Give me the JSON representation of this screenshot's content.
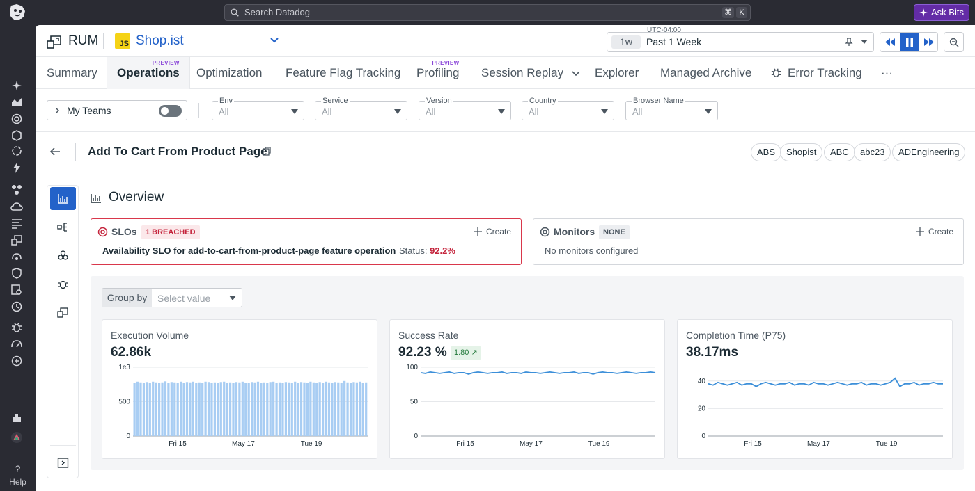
{
  "global": {
    "search_placeholder": "Search Datadog",
    "search_kbd_cmd": "⌘",
    "search_kbd_k": "K",
    "ask_bits": "Ask Bits",
    "help": "Help"
  },
  "header": {
    "product": "RUM",
    "app_badge": "JS",
    "app_name": "Shop.ist",
    "timezone": "UTC-04:00",
    "time_chip": "1w",
    "time_label": "Past 1 Week"
  },
  "tabs": [
    {
      "label": "Summary"
    },
    {
      "label": "Operations",
      "preview": "PREVIEW"
    },
    {
      "label": "Optimization"
    },
    {
      "label": "Feature Flag Tracking"
    },
    {
      "label": "Profiling",
      "preview": "PREVIEW"
    },
    {
      "label": "Session Replay"
    },
    {
      "label": "Explorer"
    },
    {
      "label": "Managed Archive"
    },
    {
      "label": "Error Tracking"
    },
    {
      "label": "···"
    }
  ],
  "filters": {
    "my_teams": "My Teams",
    "selects": [
      {
        "label": "Env",
        "value": "All"
      },
      {
        "label": "Service",
        "value": "All"
      },
      {
        "label": "Version",
        "value": "All"
      },
      {
        "label": "Country",
        "value": "All"
      },
      {
        "label": "Browser Name",
        "value": "All"
      }
    ]
  },
  "operation": {
    "title": "Add To Cart From Product Page",
    "teams": [
      "ABS",
      "Shopist",
      "ABC",
      "abc23",
      "ADEngineering"
    ]
  },
  "overview": {
    "title": "Overview",
    "slos": {
      "title": "SLOs",
      "badge": "1 BREACHED",
      "create": "Create",
      "name": "Availability SLO for add-to-cart-from-product-page feature operation",
      "status_label": "Status:",
      "status_value": "92.2%"
    },
    "monitors": {
      "title": "Monitors",
      "badge": "NONE",
      "create": "Create",
      "empty": "No monitors configured"
    },
    "group_by": {
      "label": "Group by",
      "placeholder": "Select value"
    }
  },
  "colors": {
    "accent": "#2362c9",
    "breach": "#c4243c",
    "line": "#3c8fd9",
    "bar": "#a8cdf3"
  },
  "chart_data": [
    {
      "type": "bar",
      "title": "Execution Volume",
      "value": "62.86k",
      "ylabel": "1e3",
      "ylim": [
        0,
        1000
      ],
      "yticks": [
        0,
        500
      ],
      "xticks": [
        "Fri 15",
        "May 17",
        "Tue 19"
      ],
      "values": [
        770,
        790,
        780,
        775,
        785,
        770,
        790,
        780,
        775,
        780,
        795,
        770,
        785,
        780,
        775,
        790,
        770,
        785,
        780,
        790,
        775,
        780,
        770,
        790,
        785,
        775,
        780,
        770,
        785,
        790,
        775,
        780,
        770,
        785,
        780,
        790,
        775,
        770,
        785,
        780,
        790,
        775,
        780,
        770,
        785,
        790,
        775,
        780,
        770,
        785,
        780,
        775,
        790,
        770,
        785,
        780,
        775,
        790,
        780,
        770,
        785,
        775,
        790,
        780,
        770,
        785,
        780,
        775,
        800,
        780,
        770,
        785,
        780,
        790,
        775,
        780
      ]
    },
    {
      "type": "line",
      "title": "Success Rate",
      "value": "92.23 %",
      "delta": "1.80 ↗",
      "ylim": [
        0,
        100
      ],
      "yticks": [
        0,
        50,
        100
      ],
      "xticks": [
        "Fri 15",
        "May 17",
        "Tue 19"
      ],
      "values": [
        92,
        91,
        93,
        92,
        91,
        92,
        93,
        91,
        92,
        92,
        90,
        92,
        93,
        92,
        91,
        92,
        92,
        93,
        91,
        92,
        92,
        91,
        93,
        92,
        92,
        91,
        92,
        93,
        92,
        91,
        92,
        92,
        93,
        91,
        92,
        92,
        90,
        92,
        93,
        92,
        92,
        91,
        92,
        93,
        92,
        91,
        92,
        92,
        93,
        92
      ]
    },
    {
      "type": "line",
      "title": "Completion Time (P75)",
      "value": "38.17ms",
      "ylim": [
        0,
        50
      ],
      "yticks": [
        0,
        20,
        40
      ],
      "xticks": [
        "Fri 15",
        "May 17",
        "Tue 19"
      ],
      "values": [
        38,
        37,
        39,
        38,
        37,
        38,
        39,
        37,
        38,
        38,
        36,
        38,
        39,
        38,
        37,
        38,
        38,
        39,
        37,
        38,
        38,
        37,
        39,
        38,
        38,
        37,
        38,
        39,
        38,
        37,
        38,
        38,
        39,
        37,
        38,
        38,
        37,
        38,
        39,
        42,
        36,
        38,
        38,
        39,
        37,
        38,
        38,
        39,
        38,
        38
      ]
    }
  ]
}
